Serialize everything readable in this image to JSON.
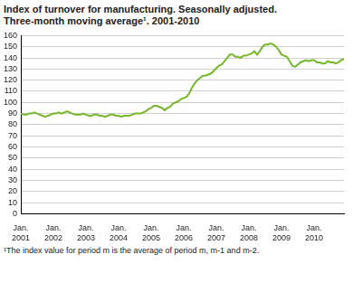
{
  "chart_data": {
    "type": "line",
    "title": "Index of turnover for manufacturing. Seasonally adjusted.\nThree-month moving average¹. 2001-2010",
    "footnote": "¹The index value for period m is the average of period m, m-1 and m-2.",
    "categories": [
      "Jan. 2001",
      null,
      null,
      null,
      null,
      null,
      null,
      null,
      null,
      null,
      null,
      null,
      "Jan. 2002",
      null,
      null,
      null,
      null,
      null,
      null,
      null,
      null,
      null,
      null,
      null,
      "Jan. 2003",
      null,
      null,
      null,
      null,
      null,
      null,
      null,
      null,
      null,
      null,
      null,
      "Jan. 2004",
      null,
      null,
      null,
      null,
      null,
      null,
      null,
      null,
      null,
      null,
      null,
      "Jan. 2005",
      null,
      null,
      null,
      null,
      null,
      null,
      null,
      null,
      null,
      null,
      null,
      "Jan. 2006",
      null,
      null,
      null,
      null,
      null,
      null,
      null,
      null,
      null,
      null,
      null,
      "Jan. 2007",
      null,
      null,
      null,
      null,
      null,
      null,
      null,
      null,
      null,
      null,
      null,
      "Jan. 2008",
      null,
      null,
      null,
      null,
      null,
      null,
      null,
      null,
      null,
      null,
      null,
      "Jan. 2009",
      null,
      null,
      null,
      null,
      null,
      null,
      null,
      null,
      null,
      null,
      null,
      "Jan. 2010",
      null,
      null,
      null,
      null,
      null,
      null,
      null,
      null,
      null,
      null,
      null
    ],
    "values": [
      90,
      89,
      89,
      90,
      90,
      91,
      90,
      89,
      88,
      87,
      88,
      89,
      90,
      90,
      91,
      90,
      91,
      92,
      91,
      90,
      89,
      89,
      89,
      90,
      89,
      88,
      88,
      89,
      89,
      88,
      88,
      87,
      88,
      89,
      89,
      88,
      88,
      87,
      88,
      88,
      88,
      89,
      90,
      90,
      90,
      91,
      92,
      94,
      95,
      97,
      97,
      96,
      95,
      93,
      95,
      96,
      99,
      100,
      101,
      103,
      104,
      105,
      108,
      113,
      117,
      120,
      122,
      124,
      124,
      125,
      126,
      128,
      131,
      133,
      134,
      137,
      140,
      143,
      143,
      141,
      141,
      140,
      142,
      142,
      143,
      144,
      146,
      143,
      146,
      150,
      152,
      152,
      153,
      152,
      150,
      147,
      143,
      142,
      141,
      137,
      133,
      132,
      134,
      136,
      137,
      138,
      137,
      138,
      138,
      136,
      136,
      135,
      135,
      137,
      136,
      136,
      135,
      136,
      138,
      139
    ],
    "color": "#76b82a",
    "ylim": [
      0,
      160
    ],
    "yticks": [
      0,
      10,
      20,
      30,
      40,
      50,
      60,
      70,
      80,
      90,
      100,
      110,
      120,
      130,
      140,
      150,
      160
    ],
    "grid": true
  }
}
